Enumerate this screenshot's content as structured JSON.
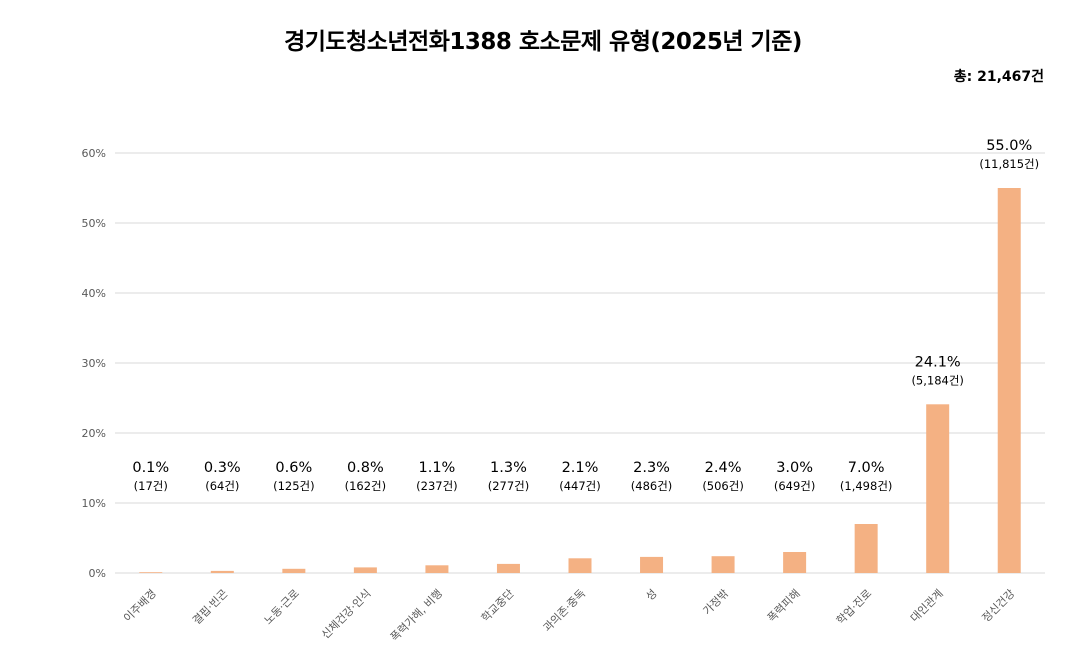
{
  "chart_data": {
    "type": "bar",
    "title": "경기도청소년전화1388 호소문제 유형(2025년 기준)",
    "total_label": "총: 21,467건",
    "ylim": [
      0,
      60
    ],
    "yticks": [
      "0%",
      "10%",
      "20%",
      "30%",
      "40%",
      "50%",
      "60%"
    ],
    "grid": true,
    "bar_color": "#F4B183",
    "categories": [
      "이주배경",
      "결핍·빈곤",
      "노동·근로",
      "신체건강·인식",
      "폭력가해, 비행",
      "학교중단",
      "과의존·중독",
      "성",
      "가정밖",
      "폭력피해",
      "학업·진로",
      "대인관계",
      "정신건강"
    ],
    "values": [
      0.1,
      0.3,
      0.6,
      0.8,
      1.1,
      1.3,
      2.1,
      2.3,
      2.4,
      3.0,
      7.0,
      24.1,
      55.0
    ],
    "value_labels": [
      "0.1%",
      "0.3%",
      "0.6%",
      "0.8%",
      "1.1%",
      "1.3%",
      "2.1%",
      "2.3%",
      "2.4%",
      "3.0%",
      "7.0%",
      "24.1%",
      "55.0%"
    ],
    "count_labels": [
      "(17건)",
      "(64건)",
      "(125건)",
      "(162건)",
      "(237건)",
      "(277건)",
      "(447건)",
      "(486건)",
      "(506건)",
      "(649건)",
      "(1,498건)",
      "(5,184건)",
      "(11,815건)"
    ]
  }
}
